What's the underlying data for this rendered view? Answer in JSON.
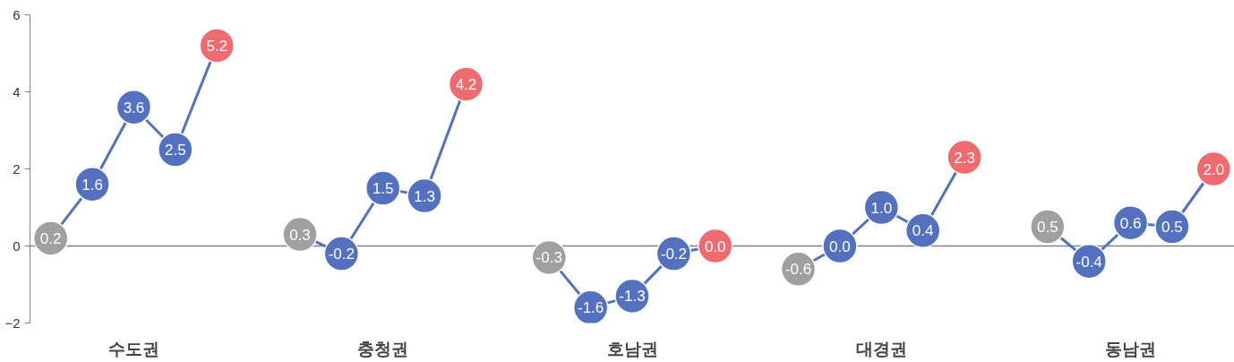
{
  "chart_data": {
    "type": "line",
    "categories": [
      null,
      null,
      "수도권",
      null,
      null,
      null,
      null,
      null,
      "충청권",
      null,
      null,
      null,
      null,
      null,
      "호남권",
      null,
      null,
      null,
      null,
      null,
      "대경권",
      null,
      null,
      null,
      null,
      null,
      "동남권",
      null,
      null
    ],
    "series": [
      {
        "color": "#5471c0",
        "values": [
          0.2,
          1.6,
          3.6,
          2.5,
          5.2,
          null,
          0.3,
          -0.2,
          1.5,
          1.3,
          4.2,
          null,
          -0.3,
          -1.6,
          -1.3,
          -0.2,
          0.0,
          null,
          -0.6,
          0.0,
          1.0,
          0.4,
          2.3,
          null,
          0.5,
          -0.4,
          0.6,
          0.5,
          2.0
        ],
        "colors": [
          "#a0a0a0",
          "#5471c0",
          "#5471c0",
          "#5471c0",
          "#f06b70",
          null,
          "#a0a0a0",
          "#5471c0",
          "#5471c0",
          "#5471c0",
          "#f06b70",
          null,
          "#a0a0a0",
          "#5471c0",
          "#5471c0",
          "#5471c0",
          "#f06b70",
          null,
          "#a0a0a0",
          "#5471c0",
          "#5471c0",
          "#5471c0",
          "#f06b70",
          null,
          "#a0a0a0",
          "#5471c0",
          "#5471c0",
          "#5471c0",
          "#f06b70"
        ],
        "value_labels": [
          "0.2",
          "1.6",
          "3.6",
          "2.5",
          "5.2",
          null,
          "0.3",
          "-0.2",
          "1.5",
          "1.3",
          "4.2",
          null,
          "-0.3",
          "-1.6",
          "-1.3",
          "-0.2",
          "0.0",
          null,
          "-0.6",
          "0.0",
          "1.0",
          "0.4",
          "2.3",
          null,
          "0.5",
          "-0.4",
          "0.6",
          "0.5",
          "2.0"
        ]
      }
    ],
    "ylim": [
      -2,
      6
    ],
    "yticks": [
      -2,
      0,
      2,
      4,
      6
    ],
    "ref_lines": [
      {
        "axis": "y",
        "value": 0,
        "color": "#808080"
      }
    ],
    "marker": "circle",
    "line_style": "solid",
    "grid": false
  }
}
